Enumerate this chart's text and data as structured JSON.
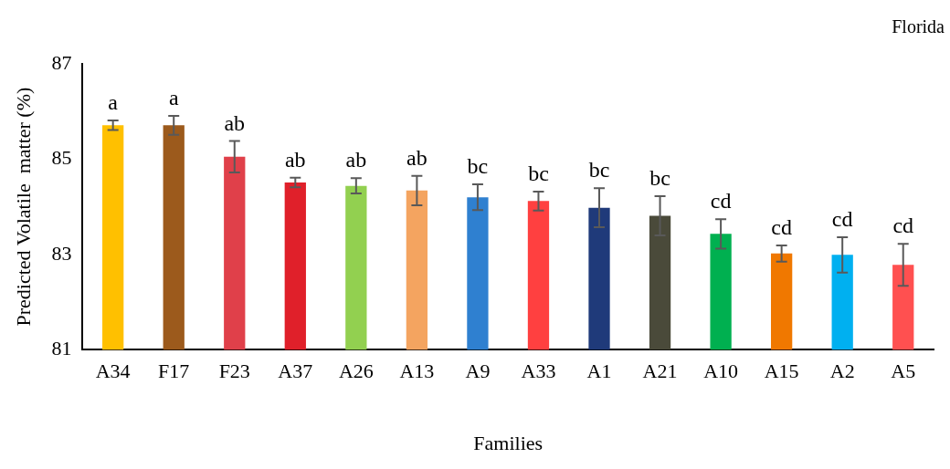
{
  "chart_data": {
    "type": "bar",
    "xlabel": "Families",
    "ylabel": "Predicted Volatile  matter (%)",
    "categories": [
      "A34",
      "F17",
      "F23",
      "A37",
      "A26",
      "A13",
      "A9",
      "A33",
      "A1",
      "A21",
      "A10",
      "A15",
      "A2",
      "A5"
    ],
    "values": [
      85.71,
      85.71,
      85.05,
      84.51,
      84.44,
      84.34,
      84.2,
      84.12,
      83.98,
      83.81,
      83.43,
      83.02,
      82.99,
      82.78
    ],
    "errors": [
      0.1,
      0.2,
      0.33,
      0.1,
      0.16,
      0.31,
      0.27,
      0.2,
      0.41,
      0.41,
      0.31,
      0.17,
      0.37,
      0.44
    ],
    "colors": [
      "#ffc000",
      "#9c5a1c",
      "#e0404a",
      "#e0202a",
      "#92d050",
      "#f4a460",
      "#2f80d0",
      "#ff4040",
      "#1f3a7a",
      "#4a4a3a",
      "#00b050",
      "#f07800",
      "#00b0f0",
      "#ff5050"
    ],
    "ylim": [
      81,
      87
    ],
    "yticks": [
      81,
      83,
      85,
      87
    ],
    "grid": false,
    "legend": false,
    "annotations": [
      "Florida",
      "a",
      "a",
      "ab",
      "ab",
      "ab",
      "ab",
      "bc",
      "bc",
      "bc",
      "bc",
      "cd",
      "cd",
      "cd",
      "cd"
    ]
  }
}
